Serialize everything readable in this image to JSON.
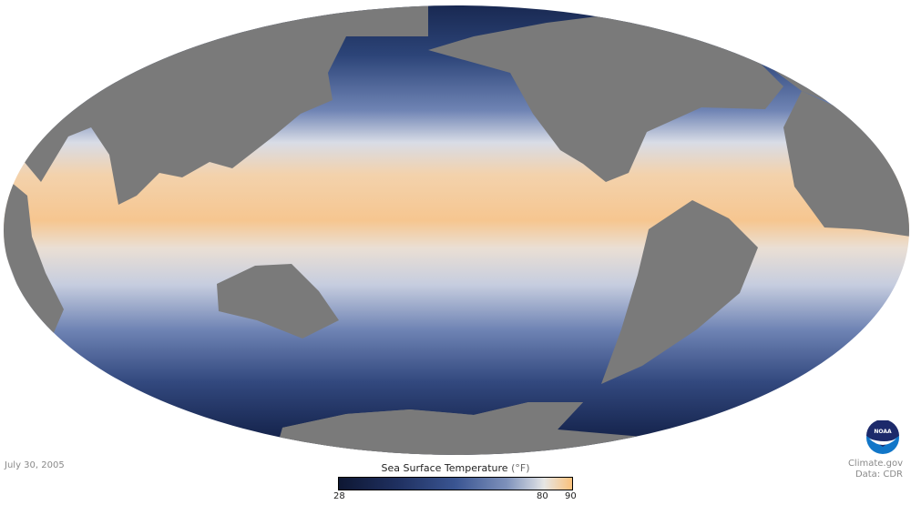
{
  "map": {
    "projection": "Mollweide",
    "land_color": "#7a7a7a",
    "ocean_cold_color": "#111c3d",
    "ocean_warm_color": "#f8c07a"
  },
  "date": "July 30, 2005",
  "legend": {
    "title": "Sea Surface Temperature",
    "unit": "(°F)",
    "min": "28",
    "mid": "80",
    "max": "90",
    "colors": [
      "#0e1733",
      "#3a5592",
      "#e6e6e4",
      "#fbc27c"
    ]
  },
  "credits": {
    "logo_text": "NOAA",
    "line1": "Climate.gov",
    "line2": "Data: CDR"
  }
}
